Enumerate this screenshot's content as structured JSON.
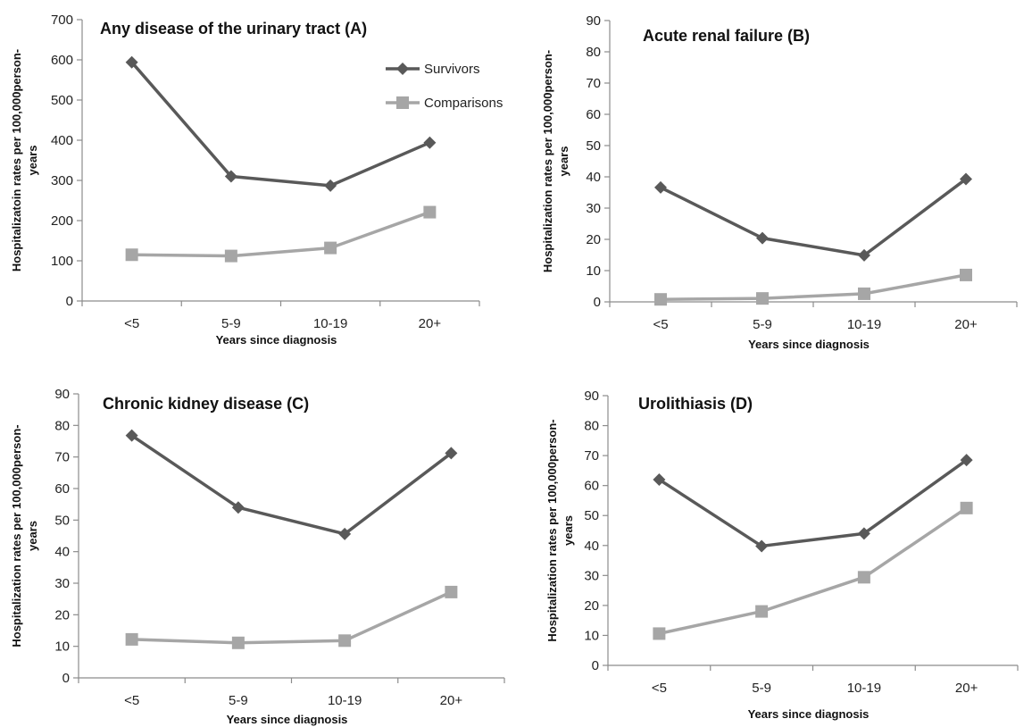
{
  "colors": {
    "survivors": "#595959",
    "comparisons": "#a6a6a6",
    "axis": "#8c8c8c"
  },
  "chart_data": [
    {
      "type": "line",
      "title": "Any disease of the urinary tract (A)",
      "xlabel": "Years since diagnosis",
      "ylabel_line1": "Hospitalizatoin rates per 100,000person-",
      "ylabel_line2": "years",
      "categories": [
        "<5",
        "5-9",
        "10-19",
        "20+"
      ],
      "ylim": [
        0,
        700
      ],
      "yticks": [
        0,
        100,
        200,
        300,
        400,
        500,
        600,
        700
      ],
      "legend": "top-right",
      "series": [
        {
          "name": "Survivors",
          "marker": "diamond",
          "values": [
            594,
            310,
            287,
            394
          ]
        },
        {
          "name": "Comparisons",
          "marker": "square",
          "values": [
            115,
            112,
            132,
            221
          ]
        }
      ]
    },
    {
      "type": "line",
      "title": "Acute renal failure (B)",
      "xlabel": "Years since diagnosis",
      "ylabel_line1": "Hospitalization rates per 100,000person-",
      "ylabel_line2": "years",
      "categories": [
        "<5",
        "5-9",
        "10-19",
        "20+"
      ],
      "ylim": [
        0,
        90
      ],
      "yticks": [
        0,
        10,
        20,
        30,
        40,
        50,
        60,
        70,
        80,
        90
      ],
      "series": [
        {
          "name": "Survivors",
          "marker": "diamond",
          "values": [
            36.6,
            20.4,
            14.9,
            39.3
          ]
        },
        {
          "name": "Comparisons",
          "marker": "square",
          "values": [
            0.8,
            1.1,
            2.6,
            8.6
          ]
        }
      ]
    },
    {
      "type": "line",
      "title": "Chronic kidney disease (C)",
      "xlabel": "Years since diagnosis",
      "ylabel_line1": "Hospitalization rates per 100,000person-",
      "ylabel_line2": "years",
      "categories": [
        "<5",
        "5-9",
        "10-19",
        "20+"
      ],
      "ylim": [
        0,
        90
      ],
      "yticks": [
        0,
        10,
        20,
        30,
        40,
        50,
        60,
        70,
        80,
        90
      ],
      "series": [
        {
          "name": "Survivors",
          "marker": "diamond",
          "values": [
            76.8,
            54,
            45.6,
            71.2
          ]
        },
        {
          "name": "Comparisons",
          "marker": "square",
          "values": [
            12.2,
            11.1,
            11.8,
            27.2
          ]
        }
      ]
    },
    {
      "type": "line",
      "title": "Urolithiasis (D)",
      "xlabel": "Years since diagnosis",
      "ylabel_line1": "Hospitalization rates per 100,000person-",
      "ylabel_line2": "years",
      "categories": [
        "<5",
        "5-9",
        "10-19",
        "20+"
      ],
      "ylim": [
        0,
        90
      ],
      "yticks": [
        0,
        10,
        20,
        30,
        40,
        50,
        60,
        70,
        80,
        90
      ],
      "series": [
        {
          "name": "Survivors",
          "marker": "diamond",
          "values": [
            62,
            39.8,
            44,
            68.5
          ]
        },
        {
          "name": "Comparisons",
          "marker": "square",
          "values": [
            10.6,
            18,
            29.4,
            52.5
          ]
        }
      ]
    }
  ]
}
